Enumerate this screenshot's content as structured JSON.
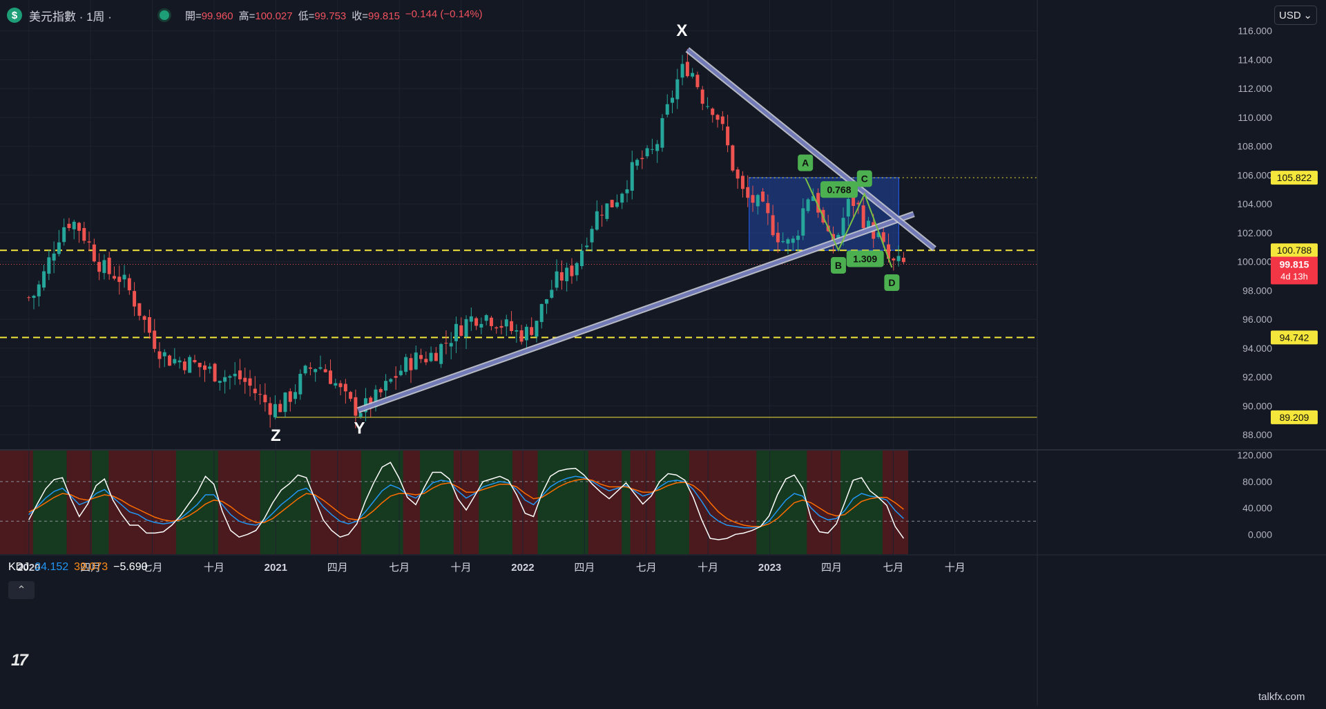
{
  "header": {
    "symbol_icon": "$",
    "symbol": "美元指數 · 1周 ·",
    "ohlc": {
      "open_label": "開=",
      "open": "99.960",
      "high_label": "高=",
      "high": "100.027",
      "low_label": "低=",
      "low": "99.753",
      "close_label": "收=",
      "close": "99.815",
      "change": "−0.144 (−0.14%)"
    }
  },
  "currency_selector": {
    "value": "USD",
    "icon": "chevron-down-icon"
  },
  "colors": {
    "background": "#141823",
    "up": "#26a69a",
    "down": "#ef5350",
    "grid": "#1e2230",
    "k_line": "#2196f3",
    "d_line": "#ff6d00",
    "j_line": "#ffffff",
    "level_lines": "#f5e63b"
  },
  "chart_data": [
    {
      "type": "candlestick",
      "title": "美元指數 · 1周",
      "x_ticks": [
        "2020",
        "四月",
        "七月",
        "十月",
        "2021",
        "四月",
        "七月",
        "十月",
        "2022",
        "四月",
        "七月",
        "十月",
        "2023",
        "四月",
        "七月",
        "十月"
      ],
      "y_ticks": [
        "116.000",
        "114.000",
        "112.000",
        "110.000",
        "108.000",
        "106.000",
        "104.000",
        "102.000",
        "100.000",
        "98.000",
        "96.000",
        "94.000",
        "92.000",
        "90.000",
        "88.000"
      ],
      "ylim": [
        87.0,
        116.8
      ],
      "price_anchors": [
        {
          "date": "2020-01",
          "value": 97.5
        },
        {
          "date": "2020-03",
          "value": 102.8
        },
        {
          "date": "2020-05",
          "value": 99.2
        },
        {
          "date": "2020-08",
          "value": 93.2
        },
        {
          "date": "2020-11",
          "value": 92.0
        },
        {
          "date": "2021-01",
          "value": 89.9
        },
        {
          "date": "2021-03",
          "value": 92.8
        },
        {
          "date": "2021-05",
          "value": 89.8
        },
        {
          "date": "2021-08",
          "value": 93.3
        },
        {
          "date": "2021-11",
          "value": 96.3
        },
        {
          "date": "2022-01",
          "value": 95.0
        },
        {
          "date": "2022-03",
          "value": 99.0
        },
        {
          "date": "2022-05",
          "value": 103.8
        },
        {
          "date": "2022-07",
          "value": 107.2
        },
        {
          "date": "2022-09",
          "value": 113.5
        },
        {
          "date": "2022-10",
          "value": 111.0
        },
        {
          "date": "2022-12",
          "value": 104.3
        },
        {
          "date": "2023-02",
          "value": 101.2
        },
        {
          "date": "2023-03",
          "value": 104.8
        },
        {
          "date": "2023-04",
          "value": 101.2
        },
        {
          "date": "2023-05",
          "value": 104.2
        },
        {
          "date": "2023-06",
          "value": 102.1
        },
        {
          "date": "2023-07",
          "value": 99.8
        }
      ],
      "price_labels": [
        {
          "value": "105.822",
          "style": "dotted"
        },
        {
          "value": "100.788",
          "style": "dashed"
        },
        {
          "value": "94.742",
          "style": "dashed"
        },
        {
          "value": "89.209",
          "style": "solid"
        }
      ],
      "last_price": {
        "value": "99.815",
        "countdown": "4d 13h"
      },
      "wave_labels": [
        "X",
        "Y",
        "Z"
      ],
      "harmonic_points": [
        "A",
        "B",
        "C",
        "D"
      ],
      "harmonic_ratios": [
        "0.768",
        "1.309"
      ],
      "harmonic_pattern": [
        {
          "point": "A",
          "value": 105.8
        },
        {
          "point": "B",
          "value": 100.8
        },
        {
          "point": "C",
          "value": 104.7
        },
        {
          "point": "D",
          "value": 99.6
        }
      ],
      "trendlines": [
        {
          "from": [
            "2021-05",
            89.7
          ],
          "to": [
            "2023-08",
            103.3
          ]
        },
        {
          "from": [
            "2022-09",
            114.7
          ],
          "to": [
            "2023-09",
            100.9
          ]
        }
      ],
      "box": {
        "top": 105.822,
        "bottom": 100.788,
        "from": "2022-12",
        "to": "2023-07"
      }
    },
    {
      "type": "line",
      "indicator": "KDJ",
      "legend": {
        "name": "KDJ",
        "k": "24.152",
        "d": "39.073",
        "j": "−5.690"
      },
      "y_ticks": [
        "120.000",
        "80.000",
        "40.000",
        "0.000"
      ],
      "ylim": [
        -30,
        127
      ],
      "reference_levels": [
        80,
        20
      ],
      "series": [
        {
          "name": "K",
          "values": [
            30,
            42,
            55,
            65,
            70,
            58,
            45,
            50,
            62,
            68,
            56,
            45,
            34,
            30,
            22,
            18,
            16,
            18,
            24,
            34,
            45,
            60,
            60,
            45,
            30,
            20,
            16,
            14,
            20,
            32,
            45,
            55,
            66,
            70,
            58,
            42,
            30,
            20,
            16,
            20,
            34,
            50,
            66,
            75,
            70,
            60,
            55,
            65,
            78,
            82,
            80,
            66,
            55,
            62,
            72,
            76,
            80,
            78,
            68,
            52,
            45,
            58,
            72,
            80,
            85,
            88,
            86,
            80,
            72,
            66,
            70,
            74,
            66,
            58,
            62,
            72,
            80,
            82,
            80,
            68,
            50,
            30,
            20,
            14,
            12,
            10,
            10,
            12,
            20,
            36,
            52,
            62,
            58,
            40,
            28,
            22,
            24,
            36,
            54,
            62,
            58,
            56,
            52,
            36,
            24
          ]
        },
        {
          "name": "D",
          "values": [
            34,
            40,
            48,
            56,
            62,
            60,
            54,
            52,
            56,
            60,
            58,
            52,
            44,
            38,
            32,
            26,
            22,
            20,
            22,
            28,
            36,
            46,
            52,
            50,
            42,
            32,
            24,
            18,
            18,
            24,
            34,
            44,
            54,
            62,
            60,
            52,
            42,
            32,
            24,
            22,
            26,
            36,
            48,
            58,
            62,
            62,
            60,
            62,
            70,
            76,
            78,
            72,
            64,
            64,
            68,
            72,
            76,
            76,
            72,
            62,
            54,
            56,
            64,
            72,
            78,
            82,
            84,
            82,
            76,
            72,
            72,
            72,
            68,
            64,
            64,
            68,
            74,
            78,
            79,
            74,
            64,
            48,
            34,
            24,
            18,
            14,
            12,
            12,
            16,
            24,
            36,
            48,
            52,
            48,
            40,
            32,
            28,
            30,
            40,
            50,
            54,
            56,
            56,
            48,
            38
          ]
        },
        {
          "name": "J",
          "values": [
            22,
            46,
            69,
            83,
            86,
            54,
            27,
            46,
            74,
            84,
            52,
            31,
            14,
            14,
            2,
            2,
            4,
            14,
            28,
            46,
            63,
            88,
            76,
            35,
            6,
            -4,
            0,
            6,
            24,
            48,
            67,
            77,
            90,
            86,
            54,
            22,
            6,
            -4,
            0,
            16,
            50,
            78,
            102,
            109,
            86,
            56,
            45,
            71,
            94,
            94,
            84,
            54,
            37,
            58,
            80,
            84,
            88,
            82,
            60,
            32,
            27,
            62,
            88,
            96,
            99,
            100,
            90,
            76,
            64,
            54,
            66,
            78,
            62,
            46,
            58,
            80,
            92,
            90,
            82,
            56,
            22,
            -6,
            -8,
            -6,
            0,
            2,
            6,
            12,
            28,
            60,
            84,
            90,
            70,
            24,
            4,
            2,
            16,
            48,
            82,
            86,
            66,
            56,
            44,
            12,
            -6
          ]
        }
      ]
    }
  ]
}
